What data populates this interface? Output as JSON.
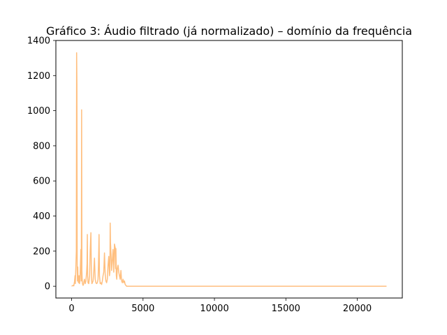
{
  "chart_data": {
    "type": "line",
    "title": "Gráfico 3: Áudio filtrado (já normalizado) – domínio da frequência",
    "xlabel": "",
    "ylabel": "",
    "xlim": [
      -1102.5,
      23152.5
    ],
    "ylim": [
      -67,
      1400
    ],
    "xticks": [
      0,
      5000,
      10000,
      15000,
      20000
    ],
    "yticks": [
      0,
      200,
      400,
      600,
      800,
      1000,
      1200,
      1400
    ],
    "grid": false,
    "legend": "none",
    "series": [
      {
        "color": "#ffbf7f",
        "x": [
          0,
          100,
          150,
          200,
          240,
          260,
          300,
          330,
          350,
          370,
          390,
          410,
          430,
          450,
          480,
          520,
          550,
          580,
          620,
          650,
          680,
          700,
          720,
          740,
          760,
          780,
          800,
          830,
          860,
          900,
          950,
          1000,
          1050,
          1080,
          1100,
          1120,
          1150,
          1200,
          1260,
          1300,
          1350,
          1380,
          1400,
          1420,
          1450,
          1500,
          1550,
          1600,
          1650,
          1700,
          1750,
          1800,
          1850,
          1880,
          1900,
          1920,
          1950,
          2000,
          2050,
          2100,
          2150,
          2200,
          2250,
          2300,
          2350,
          2400,
          2450,
          2500,
          2550,
          2600,
          2650,
          2680,
          2700,
          2720,
          2750,
          2800,
          2850,
          2900,
          2950,
          3000,
          3050,
          3080,
          3100,
          3130,
          3160,
          3200,
          3250,
          3300,
          3350,
          3400,
          3450,
          3500,
          3550,
          3600,
          3650,
          3700,
          3750,
          3800,
          3850,
          3900,
          4000,
          5000,
          10000,
          15000,
          20000,
          22050
        ],
        "y": [
          0,
          5,
          2,
          25,
          60,
          15,
          120,
          200,
          1330,
          1150,
          90,
          30,
          110,
          40,
          20,
          60,
          15,
          30,
          130,
          210,
          30,
          1005,
          90,
          40,
          15,
          10,
          5,
          10,
          25,
          40,
          15,
          30,
          80,
          130,
          295,
          60,
          20,
          15,
          60,
          200,
          305,
          100,
          40,
          15,
          20,
          30,
          80,
          160,
          40,
          20,
          15,
          20,
          40,
          120,
          200,
          295,
          60,
          15,
          20,
          10,
          30,
          60,
          80,
          190,
          70,
          30,
          20,
          40,
          120,
          170,
          60,
          80,
          360,
          250,
          200,
          90,
          150,
          210,
          80,
          240,
          220,
          100,
          215,
          60,
          40,
          100,
          120,
          80,
          60,
          40,
          90,
          30,
          20,
          40,
          20,
          30,
          10,
          5,
          0,
          0,
          0,
          0,
          0,
          0,
          0,
          0
        ]
      }
    ]
  }
}
